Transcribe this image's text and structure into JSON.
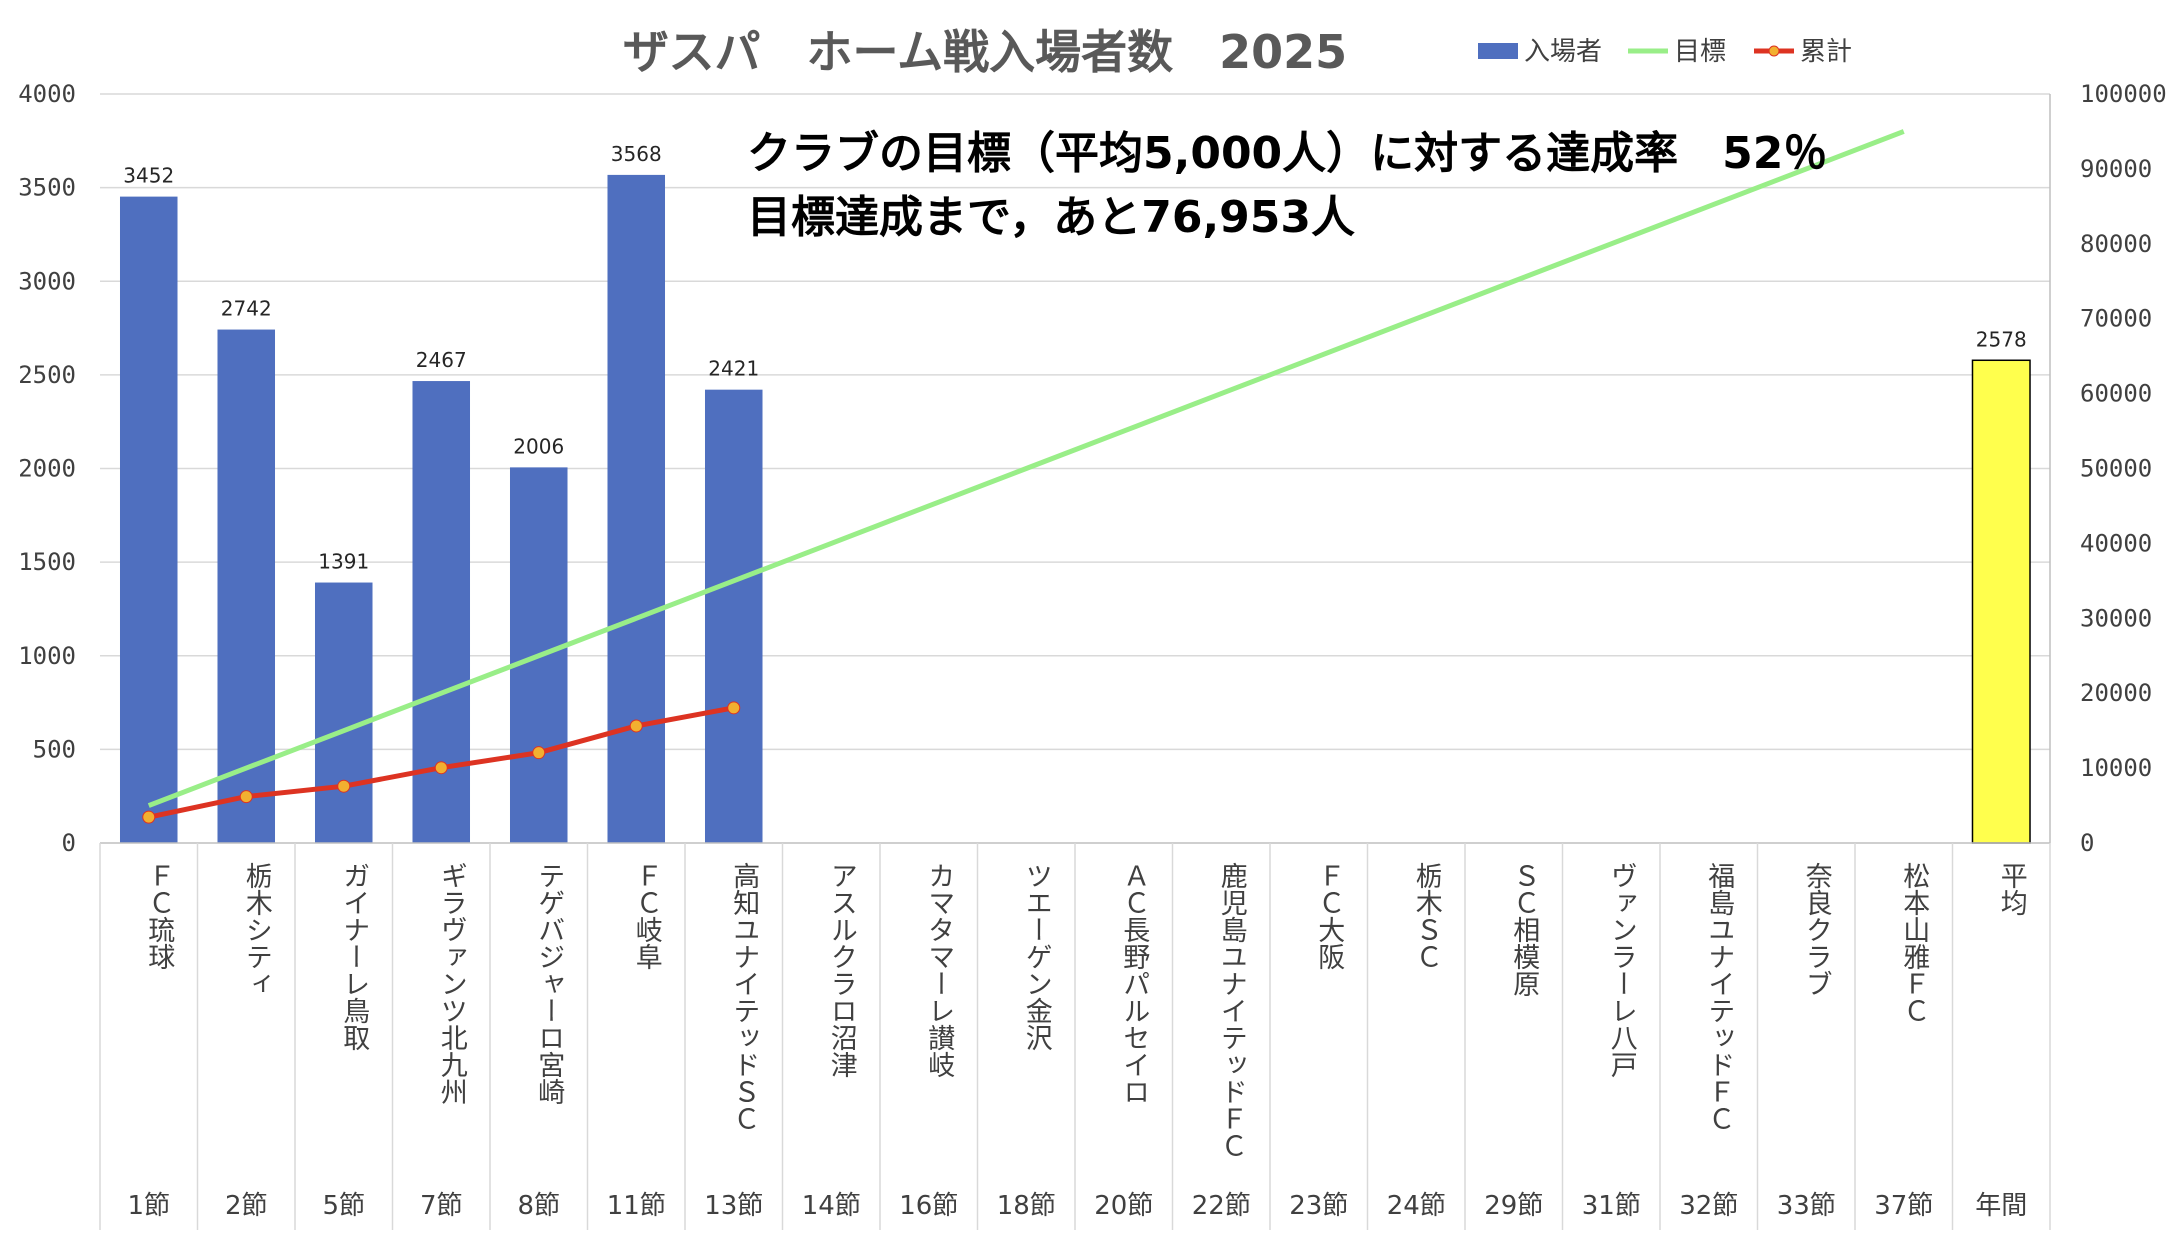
{
  "chart_data": {
    "type": "bar",
    "title": "ザスパ　ホーム戦入場者数　2025",
    "categories": [
      "ＦＣ琉球",
      "栃木シティ",
      "ガイナーレ鳥取",
      "ギラヴァンツ北九州",
      "テゲバジャーロ宮崎",
      "ＦＣ岐阜",
      "高知ユナイテッドＳＣ",
      "アスルクラロ沼津",
      "カマタマーレ讃岐",
      "ツエーゲン金沢",
      "ＡＣ長野パルセイロ",
      "鹿児島ユナイテッドＦＣ",
      "ＦＣ大阪",
      "栃木ＳＣ",
      "ＳＣ相模原",
      "ヴァンラーレ八戸",
      "福島ユナイテッドＦＣ",
      "奈良クラブ",
      "松本山雅ＦＣ",
      "平均"
    ],
    "rounds": [
      "1節",
      "2節",
      "5節",
      "7節",
      "8節",
      "11節",
      "13節",
      "14節",
      "16節",
      "18節",
      "20節",
      "22節",
      "23節",
      "24節",
      "29節",
      "31節",
      "32節",
      "33節",
      "37節",
      "年間"
    ],
    "series": [
      {
        "name": "入場者",
        "type": "bar",
        "axis": "left",
        "color": "#4f6fbf",
        "values": [
          3452,
          2742,
          1391,
          2467,
          2006,
          3568,
          2421,
          null,
          null,
          null,
          null,
          null,
          null,
          null,
          null,
          null,
          null,
          null,
          null,
          null
        ]
      },
      {
        "name": "平均",
        "type": "bar",
        "axis": "left",
        "color": "#ffff4d",
        "values": [
          null,
          null,
          null,
          null,
          null,
          null,
          null,
          null,
          null,
          null,
          null,
          null,
          null,
          null,
          null,
          null,
          null,
          null,
          null,
          2578
        ]
      },
      {
        "name": "目標",
        "type": "line",
        "axis": "right",
        "color": "#99ee88",
        "values": [
          5000,
          10000,
          15000,
          20000,
          25000,
          30000,
          35000,
          40000,
          45000,
          50000,
          55000,
          60000,
          65000,
          70000,
          75000,
          80000,
          85000,
          90000,
          95000,
          null
        ]
      },
      {
        "name": "累計",
        "type": "line",
        "axis": "right",
        "color": "#dd3322",
        "marker": "#f2b030",
        "values": [
          3452,
          6194,
          7585,
          10052,
          12058,
          15626,
          18047,
          null,
          null,
          null,
          null,
          null,
          null,
          null,
          null,
          null,
          null,
          null,
          null,
          null
        ]
      }
    ],
    "data_labels": [
      3452,
      2742,
      1391,
      2467,
      2006,
      3568,
      2421,
      null,
      null,
      null,
      null,
      null,
      null,
      null,
      null,
      null,
      null,
      null,
      null,
      2578
    ],
    "y_left": {
      "min": 0,
      "max": 4000,
      "ticks": [
        0,
        500,
        1000,
        1500,
        2000,
        2500,
        3000,
        3500,
        4000
      ]
    },
    "y_right": {
      "min": 0,
      "max": 100000,
      "ticks": [
        0,
        10000,
        20000,
        30000,
        40000,
        50000,
        60000,
        70000,
        80000,
        90000,
        100000
      ]
    },
    "legend": {
      "position": "top-right",
      "entries": [
        "入場者",
        "目標",
        "累計"
      ]
    },
    "annotations": [
      "クラブの目標（平均5,000人）に対する達成率　52％",
      "目標達成まで，あと76,953人"
    ],
    "grid": true
  }
}
